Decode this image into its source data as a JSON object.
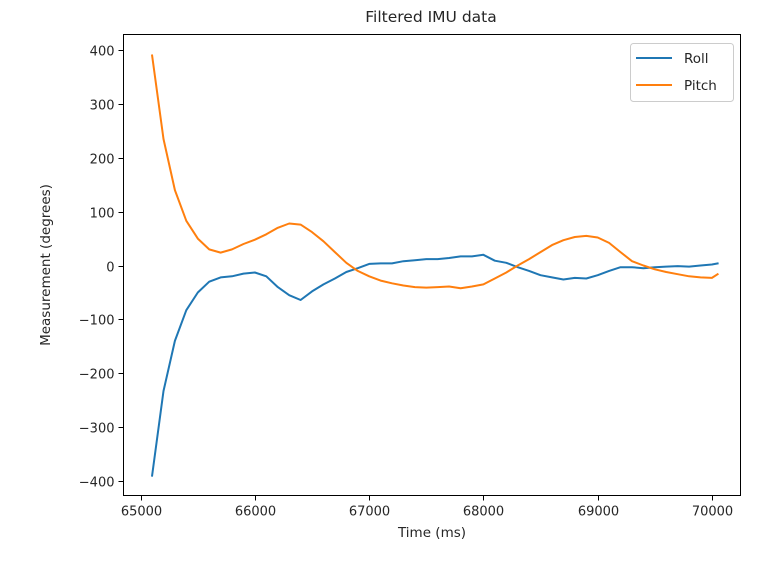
{
  "chart_data": {
    "type": "line",
    "title": "Filtered IMU data",
    "xlabel": "Time (ms)",
    "ylabel": "Measurement (degrees)",
    "xlim": [
      64850,
      70250
    ],
    "ylim": [
      -427,
      429
    ],
    "xticks": [
      65000,
      66000,
      67000,
      68000,
      69000,
      70000
    ],
    "yticks": [
      400,
      300,
      200,
      100,
      0,
      -100,
      -200,
      -300,
      -400
    ],
    "xtick_labels": [
      "65000",
      "66000",
      "67000",
      "68000",
      "69000",
      "70000"
    ],
    "ytick_labels": [
      "400",
      "300",
      "200",
      "100",
      "0",
      "−100",
      "−200",
      "−300",
      "−400"
    ],
    "grid": false,
    "legend_position": "upper right",
    "series": [
      {
        "name": "Roll",
        "color": "#1f77b4",
        "x": [
          65100,
          65200,
          65300,
          65400,
          65500,
          65600,
          65700,
          65800,
          65900,
          66000,
          66100,
          66200,
          66300,
          66400,
          66500,
          66600,
          66700,
          66800,
          66900,
          67000,
          67100,
          67200,
          67300,
          67400,
          67500,
          67600,
          67700,
          67800,
          67900,
          68000,
          68100,
          68200,
          68300,
          68400,
          68500,
          68600,
          68700,
          68800,
          68900,
          69000,
          69100,
          69200,
          69300,
          69400,
          69500,
          69600,
          69700,
          69800,
          69900,
          70000,
          70050
        ],
        "y": [
          -390,
          -233,
          -140,
          -83,
          -50,
          -30,
          -22,
          -20,
          -15,
          -13,
          -20,
          -40,
          -55,
          -64,
          -48,
          -35,
          -24,
          -12,
          -5,
          3,
          4,
          4,
          8,
          10,
          12,
          12,
          14,
          17,
          17,
          20,
          9,
          5,
          -3,
          -10,
          -18,
          -22,
          -26,
          -23,
          -24,
          -18,
          -10,
          -3,
          -3,
          -5,
          -3,
          -2,
          -1,
          -2,
          0,
          2,
          4
        ]
      },
      {
        "name": "Pitch",
        "color": "#ff7f0e",
        "x": [
          65100,
          65200,
          65300,
          65400,
          65500,
          65600,
          65700,
          65800,
          65900,
          66000,
          66100,
          66200,
          66300,
          66400,
          66500,
          66600,
          66700,
          66800,
          66900,
          67000,
          67100,
          67200,
          67300,
          67400,
          67500,
          67600,
          67700,
          67800,
          67900,
          68000,
          68100,
          68200,
          68300,
          68400,
          68500,
          68600,
          68700,
          68800,
          68900,
          69000,
          69100,
          69200,
          69300,
          69400,
          69500,
          69600,
          69700,
          69800,
          69900,
          70000,
          70050
        ],
        "y": [
          390,
          235,
          140,
          83,
          50,
          30,
          24,
          30,
          40,
          48,
          58,
          70,
          78,
          76,
          62,
          45,
          25,
          5,
          -10,
          -20,
          -28,
          -33,
          -37,
          -40,
          -41,
          -40,
          -39,
          -42,
          -39,
          -35,
          -24,
          -13,
          0,
          12,
          25,
          38,
          47,
          53,
          55,
          52,
          42,
          25,
          8,
          0,
          -7,
          -12,
          -16,
          -20,
          -22,
          -23,
          -16
        ]
      }
    ]
  },
  "legend": {
    "items": [
      {
        "label": "Roll",
        "color": "#1f77b4"
      },
      {
        "label": "Pitch",
        "color": "#ff7f0e"
      }
    ]
  }
}
